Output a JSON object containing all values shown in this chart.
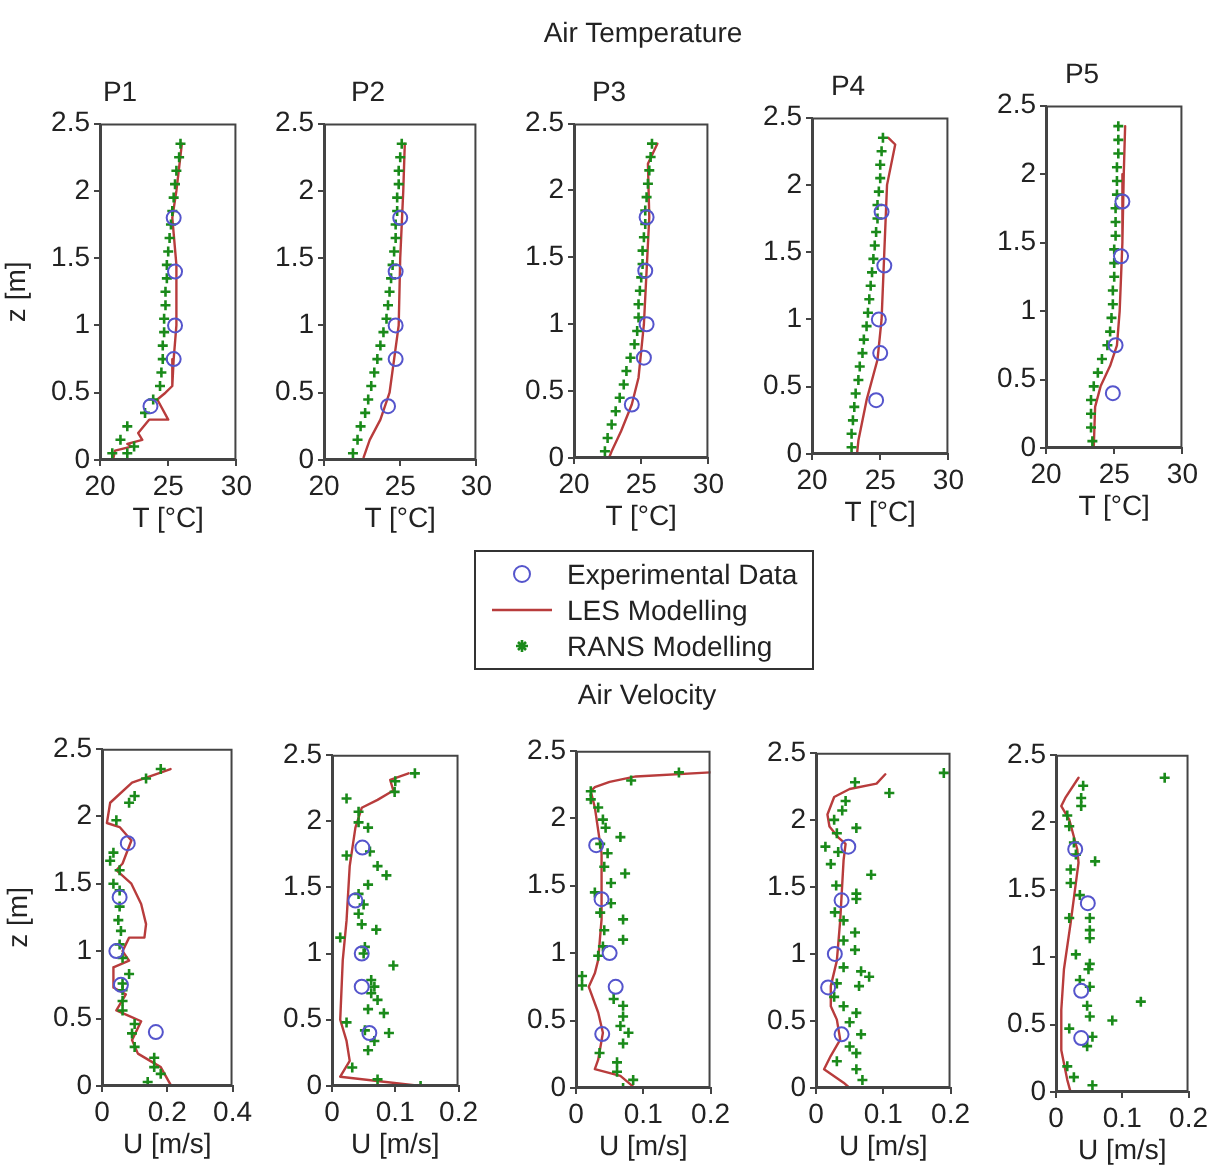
{
  "chart_data": [
    {
      "type": "scatter",
      "title": "P1",
      "xlabel": "T [°C]",
      "ylabel": "z [m]",
      "xlim": [
        20,
        30
      ],
      "xticks": [
        20,
        25,
        30
      ],
      "ylim": [
        0,
        2.5
      ],
      "yticks": [
        0,
        0.5,
        1,
        1.5,
        2,
        2.5
      ],
      "grid": false,
      "series": [
        {
          "type": "scatter",
          "marker": "circle",
          "color": "#5555cc",
          "x": [
            25.4,
            25.5,
            25.5,
            25.4,
            23.7
          ],
          "values": [
            1.8,
            1.4,
            1.0,
            0.75,
            0.4
          ]
        },
        {
          "type": "line",
          "marker": "none",
          "color": "#b83c3c",
          "x": [
            26.0,
            25.6,
            25.3,
            25.6,
            25.6,
            25.4,
            25.3,
            24.8,
            24.2,
            25.0,
            23.6,
            22.8,
            23.1,
            22.0,
            22.3,
            21.1,
            21.0
          ],
          "values": [
            2.35,
            2.0,
            1.8,
            1.45,
            1.0,
            0.75,
            0.55,
            0.5,
            0.45,
            0.3,
            0.3,
            0.2,
            0.15,
            0.12,
            0.1,
            0.07,
            0.02
          ]
        },
        {
          "type": "scatter",
          "marker": "cross",
          "color": "#1a8a1a",
          "x": [
            25.9,
            25.8,
            25.6,
            25.5,
            25.4,
            25.3,
            25.2,
            25.1,
            25.0,
            24.9,
            24.9,
            24.8,
            24.8,
            24.7,
            24.7,
            24.6,
            24.6,
            24.5,
            24.4,
            23.9,
            23.3,
            22.0,
            21.5,
            20.9,
            22.5,
            22.0
          ],
          "values": [
            2.35,
            2.25,
            2.15,
            2.05,
            1.95,
            1.85,
            1.75,
            1.65,
            1.55,
            1.45,
            1.35,
            1.25,
            1.15,
            1.05,
            0.95,
            0.85,
            0.75,
            0.65,
            0.55,
            0.45,
            0.35,
            0.25,
            0.15,
            0.05,
            0.1,
            0.05
          ]
        }
      ]
    },
    {
      "type": "scatter",
      "title": "P2",
      "xlabel": "T [°C]",
      "xlim": [
        20,
        30
      ],
      "xticks": [
        20,
        25,
        30
      ],
      "ylim": [
        0,
        2.5
      ],
      "yticks": [
        0,
        0.5,
        1,
        1.5,
        2,
        2.5
      ],
      "grid": false,
      "series": [
        {
          "type": "scatter",
          "marker": "circle",
          "color": "#5555cc",
          "x": [
            25.0,
            24.7,
            24.7,
            24.7,
            24.2
          ],
          "values": [
            1.8,
            1.4,
            1.0,
            0.75,
            0.4
          ]
        },
        {
          "type": "line",
          "marker": "none",
          "color": "#b83c3c",
          "x": [
            25.3,
            25.2,
            25.0,
            24.9,
            24.6,
            24.3,
            23.7,
            23.0,
            22.6
          ],
          "values": [
            2.35,
            2.0,
            1.5,
            1.0,
            0.75,
            0.5,
            0.3,
            0.15,
            0.02
          ]
        },
        {
          "type": "scatter",
          "marker": "cross",
          "color": "#1a8a1a",
          "x": [
            25.1,
            25.0,
            24.9,
            24.9,
            24.8,
            24.8,
            24.7,
            24.7,
            24.6,
            24.5,
            24.4,
            24.3,
            24.2,
            24.1,
            23.9,
            23.7,
            23.5,
            23.3,
            23.1,
            22.9,
            22.7,
            22.4,
            22.2,
            21.9
          ],
          "values": [
            2.35,
            2.25,
            2.15,
            2.05,
            1.95,
            1.85,
            1.75,
            1.65,
            1.55,
            1.45,
            1.35,
            1.25,
            1.15,
            1.05,
            0.95,
            0.85,
            0.75,
            0.65,
            0.55,
            0.45,
            0.35,
            0.25,
            0.15,
            0.05
          ]
        }
      ]
    },
    {
      "type": "scatter",
      "title": "P3",
      "xlabel": "T [°C]",
      "xlim": [
        20,
        30
      ],
      "xticks": [
        20,
        25,
        30
      ],
      "ylim": [
        0,
        2.5
      ],
      "yticks": [
        0,
        0.5,
        1,
        1.5,
        2,
        2.5
      ],
      "grid": false,
      "legend": "bottom",
      "annotations": [
        "Air Temperature"
      ],
      "series": [
        {
          "name": "Experimental Data",
          "type": "scatter",
          "marker": "circle",
          "color": "#5555cc",
          "x": [
            25.4,
            25.3,
            25.4,
            25.2,
            24.3
          ],
          "values": [
            1.8,
            1.4,
            1.0,
            0.75,
            0.4
          ]
        },
        {
          "name": "LES Modelling",
          "type": "line",
          "marker": "none",
          "color": "#b83c3c",
          "x": [
            26.2,
            25.5,
            25.6,
            25.4,
            25.2,
            24.8,
            24.3,
            23.5,
            22.8,
            22.6
          ],
          "values": [
            2.35,
            2.2,
            1.8,
            1.4,
            1.0,
            0.6,
            0.4,
            0.2,
            0.05,
            0.0
          ]
        },
        {
          "name": "RANS Modelling",
          "type": "scatter",
          "marker": "cross",
          "color": "#1a8a1a",
          "x": [
            25.8,
            25.7,
            25.6,
            25.5,
            25.4,
            25.3,
            25.3,
            25.2,
            25.1,
            25.1,
            25.0,
            24.9,
            24.8,
            24.8,
            24.7,
            24.5,
            24.2,
            23.9,
            23.7,
            23.4,
            23.1,
            22.8,
            22.5,
            22.3
          ],
          "values": [
            2.35,
            2.25,
            2.15,
            2.05,
            1.95,
            1.85,
            1.75,
            1.65,
            1.55,
            1.45,
            1.35,
            1.25,
            1.15,
            1.05,
            0.95,
            0.85,
            0.75,
            0.65,
            0.55,
            0.45,
            0.35,
            0.25,
            0.15,
            0.05
          ]
        }
      ]
    },
    {
      "type": "scatter",
      "title": "P4",
      "xlabel": "T [°C]",
      "xlim": [
        20,
        30
      ],
      "xticks": [
        20,
        25,
        30
      ],
      "ylim": [
        0,
        2.5
      ],
      "yticks": [
        0,
        0.5,
        1,
        1.5,
        2,
        2.5
      ],
      "grid": false,
      "series": [
        {
          "type": "scatter",
          "marker": "circle",
          "color": "#5555cc",
          "x": [
            25.1,
            25.3,
            24.9,
            25.0,
            24.7
          ],
          "values": [
            1.8,
            1.4,
            1.0,
            0.75,
            0.4
          ]
        },
        {
          "type": "line",
          "marker": "none",
          "color": "#b83c3c",
          "x": [
            25.6,
            26.1,
            25.5,
            25.3,
            25.1,
            24.8,
            24.0,
            23.4,
            23.3
          ],
          "values": [
            2.35,
            2.3,
            2.0,
            1.5,
            1.0,
            0.7,
            0.4,
            0.1,
            0.0
          ]
        },
        {
          "type": "scatter",
          "marker": "cross",
          "color": "#1a8a1a",
          "x": [
            25.2,
            25.1,
            25.0,
            25.0,
            24.9,
            24.8,
            24.8,
            24.7,
            24.6,
            24.5,
            24.4,
            24.3,
            24.2,
            24.1,
            24.0,
            23.8,
            23.7,
            23.5,
            23.4,
            23.2,
            23.1,
            23.0,
            22.9,
            22.9
          ],
          "values": [
            2.35,
            2.25,
            2.15,
            2.05,
            1.95,
            1.85,
            1.75,
            1.65,
            1.55,
            1.45,
            1.35,
            1.25,
            1.15,
            1.05,
            0.95,
            0.85,
            0.75,
            0.65,
            0.55,
            0.45,
            0.35,
            0.25,
            0.15,
            0.05
          ]
        }
      ]
    },
    {
      "type": "scatter",
      "title": "P5",
      "xlabel": "T [°C]",
      "xlim": [
        20,
        30
      ],
      "xticks": [
        20,
        25,
        30
      ],
      "ylim": [
        0,
        2.5
      ],
      "yticks": [
        0,
        0.5,
        1,
        1.5,
        2,
        2.5
      ],
      "grid": false,
      "series": [
        {
          "type": "scatter",
          "marker": "circle",
          "color": "#5555cc",
          "x": [
            25.6,
            25.5,
            25.1,
            24.9
          ],
          "values": [
            1.8,
            1.4,
            0.75,
            0.4
          ]
        },
        {
          "type": "line",
          "marker": "none",
          "color": "#b83c3c",
          "x": [
            25.8,
            25.7,
            25.6,
            25.4,
            25.2,
            24.7,
            24.0,
            23.6,
            23.5
          ],
          "values": [
            2.35,
            2.0,
            1.5,
            1.0,
            0.75,
            0.6,
            0.45,
            0.3,
            0.0
          ]
        },
        {
          "type": "scatter",
          "marker": "cross",
          "color": "#1a8a1a",
          "x": [
            25.3,
            25.3,
            25.3,
            25.2,
            25.2,
            25.2,
            25.1,
            25.1,
            25.1,
            25.0,
            25.0,
            25.0,
            24.9,
            24.9,
            24.8,
            24.7,
            24.5,
            24.1,
            23.8,
            23.5,
            23.3,
            23.3,
            23.3,
            23.4
          ],
          "values": [
            2.35,
            2.25,
            2.15,
            2.05,
            1.95,
            1.85,
            1.75,
            1.65,
            1.55,
            1.45,
            1.35,
            1.25,
            1.15,
            1.05,
            0.95,
            0.85,
            0.75,
            0.65,
            0.55,
            0.45,
            0.35,
            0.25,
            0.15,
            0.05
          ]
        }
      ]
    },
    {
      "type": "scatter",
      "xlabel": "U [m/s]",
      "ylabel": "z [m]",
      "xlim": [
        0,
        0.4
      ],
      "xticks": [
        0,
        0.2,
        0.4
      ],
      "ylim": [
        0,
        2.5
      ],
      "yticks": [
        0,
        0.5,
        1,
        1.5,
        2,
        2.5
      ],
      "grid": false,
      "series": [
        {
          "type": "scatter",
          "marker": "circle",
          "color": "#5555cc",
          "x": [
            0.079,
            0.054,
            0.044,
            0.058,
            0.165
          ],
          "values": [
            1.8,
            1.4,
            1.0,
            0.75,
            0.4
          ]
        },
        {
          "type": "line",
          "marker": "none",
          "color": "#b83c3c",
          "x": [
            0.21,
            0.092,
            0.025,
            0.015,
            0.054,
            0.09,
            0.063,
            0.044,
            0.09,
            0.12,
            0.135,
            0.13,
            0.083,
            0.063,
            0.083,
            0.035,
            0.035,
            0.073,
            0.044,
            0.12,
            0.092,
            0.11,
            0.18,
            0.21
          ],
          "values": [
            2.35,
            2.25,
            2.1,
            1.95,
            1.92,
            1.82,
            1.65,
            1.6,
            1.5,
            1.35,
            1.2,
            1.1,
            1.1,
            1.0,
            0.93,
            0.88,
            0.73,
            0.68,
            0.56,
            0.48,
            0.34,
            0.24,
            0.14,
            0.01
          ]
        },
        {
          "type": "scatter",
          "marker": "cross",
          "color": "#1a8a1a",
          "x": [
            0.18,
            0.135,
            0.1,
            0.083,
            0.044,
            0.035,
            0.025,
            0.054,
            0.035,
            0.054,
            0.054,
            0.05,
            0.058,
            0.054,
            0.063,
            0.083,
            0.063,
            0.063,
            0.063,
            0.063,
            0.1,
            0.092,
            0.1,
            0.16,
            0.16,
            0.18,
            0.14
          ],
          "values": [
            2.35,
            2.28,
            2.15,
            2.1,
            1.97,
            1.73,
            1.67,
            1.6,
            1.5,
            1.45,
            1.33,
            1.23,
            1.15,
            1.05,
            0.95,
            0.83,
            0.76,
            0.71,
            0.63,
            0.56,
            0.46,
            0.39,
            0.29,
            0.21,
            0.14,
            0.09,
            0.03
          ]
        }
      ]
    },
    {
      "type": "scatter",
      "xlabel": "U [m/s]",
      "xlim": [
        0,
        0.2
      ],
      "xticks": [
        0,
        0.1,
        0.2
      ],
      "ylim": [
        0,
        2.5
      ],
      "yticks": [
        0,
        0.5,
        1,
        1.5,
        2,
        2.5
      ],
      "grid": false,
      "series": [
        {
          "type": "scatter",
          "marker": "circle",
          "color": "#5555cc",
          "x": [
            0.048,
            0.037,
            0.047,
            0.047,
            0.059
          ],
          "values": [
            1.8,
            1.4,
            1.0,
            0.75,
            0.4
          ]
        },
        {
          "type": "line",
          "marker": "none",
          "color": "#b83c3c",
          "x": [
            0.121,
            0.092,
            0.097,
            0.072,
            0.047,
            0.037,
            0.028,
            0.023,
            0.017,
            0.013,
            0.023,
            0.028,
            0.013,
            0.14
          ],
          "values": [
            2.36,
            2.31,
            2.23,
            2.16,
            2.1,
            1.95,
            1.66,
            1.25,
            0.95,
            0.5,
            0.34,
            0.19,
            0.07,
            0.0
          ]
        },
        {
          "type": "scatter",
          "marker": "cross",
          "color": "#1a8a1a",
          "x": [
            0.131,
            0.1,
            0.099,
            0.023,
            0.042,
            0.042,
            0.057,
            0.023,
            0.06,
            0.072,
            0.086,
            0.057,
            0.042,
            0.05,
            0.042,
            0.047,
            0.07,
            0.013,
            0.052,
            0.05,
            0.097,
            0.062,
            0.067,
            0.062,
            0.072,
            0.057,
            0.082,
            0.023,
            0.052,
            0.09,
            0.067,
            0.057,
            0.032,
            0.072,
            0.14
          ],
          "values": [
            2.36,
            2.3,
            2.22,
            2.17,
            2.07,
            1.99,
            1.95,
            1.74,
            1.77,
            1.66,
            1.59,
            1.52,
            1.45,
            1.37,
            1.3,
            1.22,
            1.18,
            1.12,
            1.05,
            1.0,
            0.91,
            0.8,
            0.75,
            0.7,
            0.65,
            0.58,
            0.55,
            0.48,
            0.42,
            0.4,
            0.34,
            0.27,
            0.14,
            0.05,
            0.0
          ]
        }
      ]
    },
    {
      "type": "scatter",
      "xlabel": "U [m/s]",
      "xlim": [
        0,
        0.2
      ],
      "xticks": [
        0,
        0.1,
        0.2
      ],
      "ylim": [
        0,
        2.5
      ],
      "yticks": [
        0,
        0.5,
        1,
        1.5,
        2,
        2.5
      ],
      "grid": false,
      "annotations": [
        "Air Velocity"
      ],
      "series": [
        {
          "type": "scatter",
          "marker": "circle",
          "color": "#5555cc",
          "x": [
            0.03,
            0.038,
            0.05,
            0.059,
            0.039
          ],
          "values": [
            1.8,
            1.4,
            1.0,
            0.75,
            0.4
          ]
        },
        {
          "type": "line",
          "marker": "none",
          "color": "#b83c3c",
          "x": [
            0.2,
            0.089,
            0.05,
            0.028,
            0.022,
            0.028,
            0.038,
            0.038,
            0.033,
            0.028,
            0.019,
            0.033,
            0.04,
            0.033,
            0.028,
            0.066,
            0.085
          ],
          "values": [
            2.34,
            2.31,
            2.27,
            2.23,
            2.2,
            2.08,
            1.74,
            1.25,
            0.95,
            0.85,
            0.75,
            0.56,
            0.41,
            0.21,
            0.14,
            0.09,
            0.01
          ]
        },
        {
          "type": "scatter",
          "marker": "cross",
          "color": "#1a8a1a",
          "x": [
            0.153,
            0.082,
            0.022,
            0.022,
            0.033,
            0.04,
            0.044,
            0.066,
            0.036,
            0.047,
            0.042,
            0.073,
            0.052,
            0.028,
            0.052,
            0.036,
            0.07,
            0.042,
            0.07,
            0.04,
            0.033,
            0.009,
            0.009,
            0.056,
            0.07,
            0.07,
            0.066,
            0.078,
            0.07,
            0.035,
            0.061,
            0.061,
            0.085,
            0.07
          ],
          "values": [
            2.34,
            2.28,
            2.2,
            2.14,
            2.08,
            1.99,
            1.93,
            1.86,
            1.81,
            1.74,
            1.64,
            1.59,
            1.52,
            1.45,
            1.37,
            1.3,
            1.25,
            1.17,
            1.1,
            1.05,
            0.98,
            0.83,
            0.76,
            0.66,
            0.61,
            0.53,
            0.46,
            0.41,
            0.33,
            0.26,
            0.19,
            0.12,
            0.06,
            0.0
          ]
        }
      ]
    },
    {
      "type": "scatter",
      "xlabel": "U [m/s]",
      "xlim": [
        0,
        0.2
      ],
      "xticks": [
        0,
        0.1,
        0.2
      ],
      "ylim": [
        0,
        2.5
      ],
      "yticks": [
        0,
        0.5,
        1,
        1.5,
        2,
        2.5
      ],
      "grid": false,
      "series": [
        {
          "type": "scatter",
          "marker": "circle",
          "color": "#5555cc",
          "x": [
            0.048,
            0.038,
            0.028,
            0.018,
            0.038
          ],
          "values": [
            1.8,
            1.4,
            1.0,
            0.75,
            0.4
          ]
        },
        {
          "type": "line",
          "marker": "none",
          "color": "#b83c3c",
          "x": [
            0.103,
            0.09,
            0.05,
            0.027,
            0.017,
            0.02,
            0.033,
            0.044,
            0.041,
            0.036,
            0.031,
            0.022,
            0.022,
            0.031,
            0.036,
            0.022,
            0.012,
            0.041,
            0.05
          ],
          "values": [
            2.34,
            2.27,
            2.23,
            2.17,
            2.04,
            1.95,
            1.87,
            1.82,
            1.7,
            1.25,
            0.95,
            0.76,
            0.61,
            0.51,
            0.36,
            0.24,
            0.14,
            0.04,
            0.0
          ]
        },
        {
          "type": "scatter",
          "marker": "cross",
          "color": "#1a8a1a",
          "x": [
            0.19,
            0.109,
            0.058,
            0.044,
            0.039,
            0.027,
            0.06,
            0.031,
            0.014,
            0.033,
            0.022,
            0.082,
            0.03,
            0.06,
            0.028,
            0.06,
            0.041,
            0.058,
            0.041,
            0.058,
            0.041,
            0.067,
            0.079,
            0.031,
            0.064,
            0.027,
            0.041,
            0.06,
            0.05,
            0.067,
            0.05,
            0.06,
            0.031,
            0.06,
            0.069
          ],
          "values": [
            2.35,
            2.2,
            2.28,
            2.14,
            2.07,
            2.0,
            1.94,
            1.9,
            1.8,
            1.76,
            1.67,
            1.59,
            1.51,
            1.45,
            1.31,
            1.41,
            1.25,
            1.16,
            1.1,
            1.03,
            0.9,
            0.87,
            0.83,
            0.78,
            0.76,
            0.68,
            0.61,
            0.56,
            0.49,
            0.4,
            0.31,
            0.26,
            0.2,
            0.14,
            0.06
          ]
        }
      ]
    },
    {
      "type": "scatter",
      "xlabel": "U [m/s]",
      "xlim": [
        0,
        0.2
      ],
      "xticks": [
        0,
        0.1,
        0.2
      ],
      "ylim": [
        0,
        2.5
      ],
      "yticks": [
        0,
        0.5,
        1,
        1.5,
        2,
        2.5
      ],
      "grid": false,
      "series": [
        {
          "type": "scatter",
          "marker": "circle",
          "color": "#5555cc",
          "x": [
            0.029,
            0.048,
            0.038,
            0.038
          ],
          "values": [
            1.8,
            1.4,
            0.75,
            0.4
          ]
        },
        {
          "type": "line",
          "marker": "none",
          "color": "#b83c3c",
          "x": [
            0.034,
            0.014,
            0.008,
            0.02,
            0.032,
            0.034,
            0.022,
            0.012,
            0.008,
            0.008,
            0.017,
            0.022
          ],
          "values": [
            2.33,
            2.18,
            2.12,
            2.02,
            1.8,
            1.7,
            1.25,
            0.91,
            0.61,
            0.31,
            0.09,
            0.0
          ]
        },
        {
          "type": "scatter",
          "marker": "cross",
          "color": "#1a8a1a",
          "x": [
            0.164,
            0.041,
            0.038,
            0.038,
            0.017,
            0.02,
            0.027,
            0.03,
            0.059,
            0.022,
            0.022,
            0.036,
            0.02,
            0.051,
            0.051,
            0.051,
            0.03,
            0.051,
            0.049,
            0.036,
            0.051,
            0.128,
            0.047,
            0.051,
            0.085,
            0.02,
            0.055,
            0.047,
            0.017,
            0.027,
            0.055
          ],
          "values": [
            2.33,
            2.27,
            2.18,
            2.12,
            2.05,
            1.97,
            1.85,
            1.76,
            1.71,
            1.65,
            1.55,
            1.46,
            1.29,
            1.29,
            1.2,
            1.14,
            1.02,
            0.95,
            0.91,
            0.83,
            0.78,
            0.67,
            0.64,
            0.56,
            0.53,
            0.47,
            0.41,
            0.34,
            0.19,
            0.11,
            0.05
          ]
        }
      ]
    }
  ]
}
